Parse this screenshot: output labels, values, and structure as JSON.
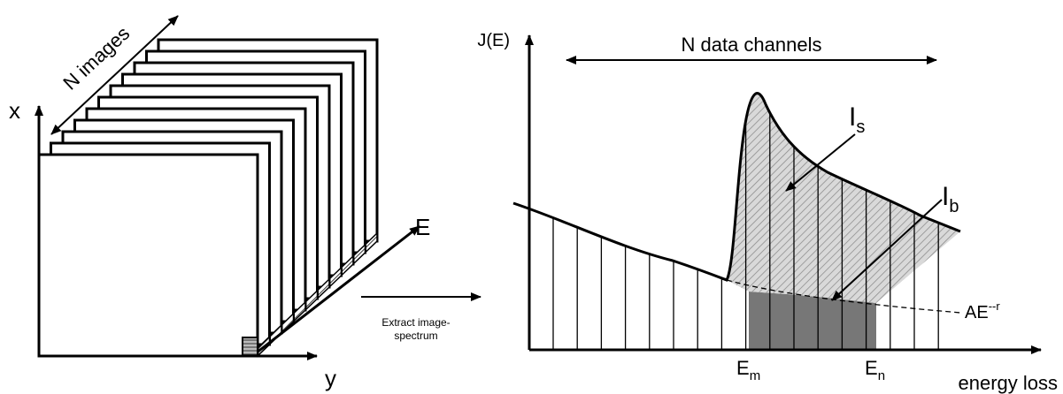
{
  "left": {
    "axis_x_label": "x",
    "axis_y_label": "y",
    "axis_e_label": "E",
    "n_images_label": "N images",
    "frame_count": 10
  },
  "middle": {
    "caption_line1": "Extract image-",
    "caption_line2": "spectrum"
  },
  "right": {
    "y_axis_label": "J(E)",
    "x_axis_label": "energy loss",
    "n_channels_label": "N data channels",
    "signal_label_main": "I",
    "signal_label_sub": "s",
    "background_label_main": "I",
    "background_label_sub": "b",
    "em_main": "E",
    "em_sub": "m",
    "en_main": "E",
    "en_sub": "n",
    "fit_label_main": "AE",
    "fit_label_sup": "--r",
    "colors": {
      "signal_hatch": "#bdbdbd",
      "background_fill": "#7a7a7a"
    }
  }
}
